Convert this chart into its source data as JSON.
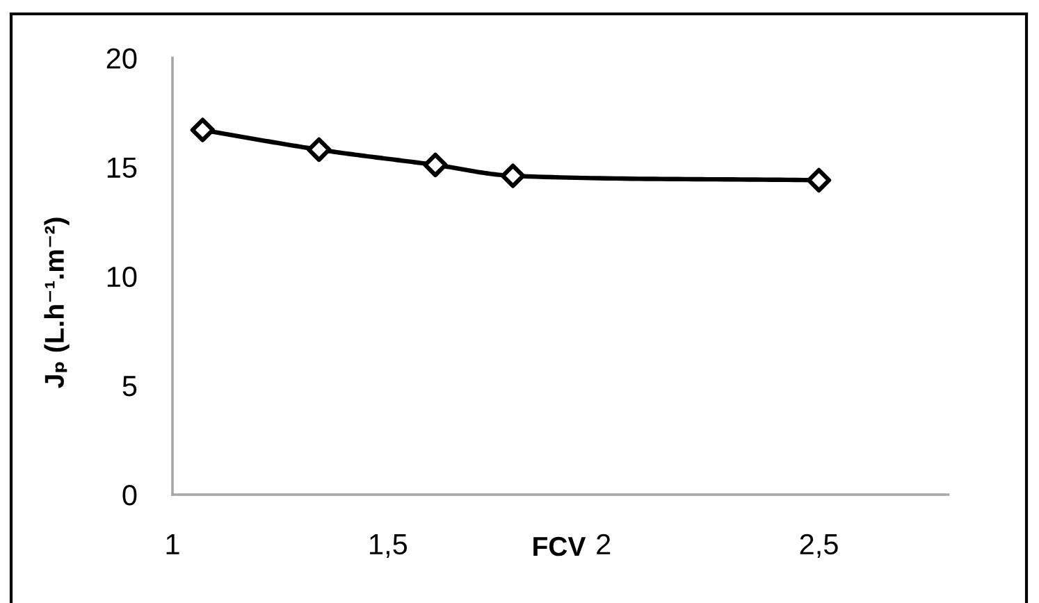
{
  "chart_data": {
    "type": "line",
    "xlabel": "FCV",
    "ylabel": "Jₚ (L.h⁻¹.m⁻²)",
    "x": [
      1.07,
      1.34,
      1.61,
      1.79,
      2.5
    ],
    "series": [
      {
        "color": "#000000",
        "values": [
          16.7,
          15.8,
          15.1,
          14.6,
          14.4
        ]
      }
    ],
    "xlim": [
      1,
      2.8
    ],
    "xticks": [
      1,
      {
        "value": 1.5,
        "label": "1,5"
      },
      2,
      {
        "value": 2.5,
        "label": "2,5"
      }
    ],
    "ylim": [
      0,
      20
    ],
    "yticks": [
      0,
      5,
      10,
      15,
      20
    ],
    "marker": "diamond",
    "line_style": "solid",
    "grid": false
  }
}
